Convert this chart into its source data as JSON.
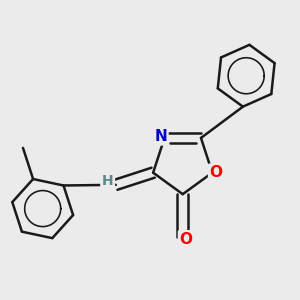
{
  "background_color": "#ebebeb",
  "bond_color": "#1a1a1a",
  "bond_width": 1.8,
  "atom_colors": {
    "O": "#ff0000",
    "N": "#0000cc",
    "H": "#5a8a8a"
  },
  "font_size": 11,
  "figsize": [
    3.0,
    3.0
  ],
  "dpi": 100,
  "ring_O_color": "#ff0000",
  "carbonyl_O_color": "#ff0000"
}
